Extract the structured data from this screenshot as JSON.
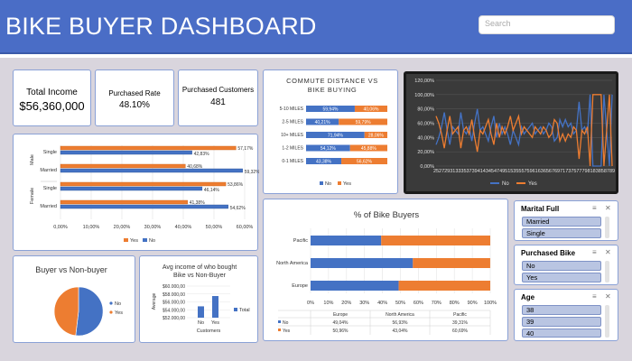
{
  "header": {
    "title": "BIKE BUYER DASHBOARD",
    "search_placeholder": "Search"
  },
  "kpis": {
    "income_label": "Total Income",
    "income_value": "$56,360,000",
    "rate_label": "Purchased Rate",
    "rate_value": "48.10%",
    "customers_label": "Purchased Customers",
    "customers_value": "481"
  },
  "colors": {
    "yes": "#ed7d31",
    "no": "#4472c4",
    "header": "#4a6dc6",
    "canvas": "#d9d5dd"
  },
  "gender_chart": {
    "tick_labels": [
      "0,00%",
      "10,00%",
      "20,00%",
      "30,00%",
      "40,00%",
      "50,00%",
      "60,00%"
    ],
    "legend": [
      "Yes",
      "No"
    ],
    "chart_data": {
      "type": "bar",
      "xlim": [
        0,
        0.6
      ],
      "groups": [
        "Male",
        "Female"
      ],
      "categories": [
        "Single",
        "Married",
        "Single",
        "Married"
      ],
      "series": [
        {
          "name": "Yes",
          "values": [
            0.5717,
            0.4068,
            0.5386,
            0.4138
          ]
        },
        {
          "name": "No",
          "values": [
            0.4283,
            0.5932,
            0.4614,
            0.5462
          ]
        }
      ],
      "label_text": {
        "yes": [
          "57,17%",
          "40,68%",
          "53,86%",
          "41,38%"
        ],
        "no": [
          "42,83%",
          "59,32%",
          "46,14%",
          "54,62%"
        ]
      }
    }
  },
  "commute_chart": {
    "title_line1": "COMMUTE DISTANCE VS",
    "title_line2": "BIKE BUYING",
    "legend": [
      "No",
      "Yes"
    ],
    "chart_data": {
      "type": "bar",
      "stacked": true,
      "categories": [
        "5-10 MILES",
        "2-5 MILES",
        "10+ MILES",
        "1-2 MILES",
        "0-1 MILES"
      ],
      "series": [
        {
          "name": "No",
          "values": [
            0.5994,
            0.4021,
            0.7194,
            0.5412,
            0.4338
          ]
        },
        {
          "name": "Yes",
          "values": [
            0.4006,
            0.5979,
            0.2806,
            0.4588,
            0.5662
          ]
        }
      ],
      "label_text": {
        "no": [
          "59,94%",
          "40,21%",
          "71,94%",
          "54,12%",
          "43,38%"
        ],
        "yes": [
          "40,06%",
          "59,79%",
          "28,06%",
          "45,88%",
          "56,62%"
        ]
      }
    }
  },
  "age_chart": {
    "y_ticks": [
      "120,00%",
      "100,00%",
      "80,00%",
      "60,00%",
      "40,00%",
      "20,00%",
      "0,00%"
    ],
    "legend": [
      "No",
      "Yes"
    ],
    "chart_data": {
      "type": "line",
      "ylim": [
        0,
        1.2
      ],
      "x": [
        25,
        26,
        27,
        28,
        29,
        30,
        31,
        32,
        33,
        34,
        35,
        36,
        37,
        38,
        39,
        40,
        41,
        42,
        43,
        44,
        45,
        46,
        47,
        48,
        49,
        50,
        51,
        52,
        53,
        54,
        55,
        56,
        57,
        58,
        59,
        60,
        61,
        62,
        63,
        64,
        65,
        66,
        67,
        68,
        69,
        70,
        71,
        72,
        73,
        74,
        75,
        76,
        77,
        78,
        79,
        80,
        81,
        82,
        83,
        84,
        85,
        86,
        87,
        88,
        89
      ],
      "x_labels": [
        "25",
        "27",
        "29",
        "31",
        "33",
        "35",
        "37",
        "39",
        "41",
        "43",
        "45",
        "47",
        "49",
        "51",
        "53",
        "55",
        "57",
        "59",
        "61",
        "63",
        "65",
        "67",
        "69",
        "71",
        "73",
        "75",
        "77",
        "79",
        "81",
        "83",
        "85",
        "87",
        "89"
      ],
      "series": [
        {
          "name": "No",
          "values": [
            0.3,
            0.4,
            0.55,
            0.75,
            0.5,
            0.3,
            0.55,
            0.5,
            0.45,
            0.75,
            0.5,
            0.45,
            0.55,
            0.35,
            0.6,
            0.8,
            0.5,
            0.55,
            0.45,
            0.35,
            0.55,
            0.7,
            0.4,
            0.6,
            0.45,
            0.55,
            0.45,
            0.3,
            0.5,
            0.4,
            0.3,
            0.55,
            0.45,
            0.5,
            0.55,
            0.6,
            0.45,
            0.5,
            0.55,
            0.45,
            0.5,
            0.6,
            0.55,
            0.35,
            0.4,
            0.65,
            0.55,
            0.65,
            0.55,
            0.6,
            0.45,
            0.5,
            0.9,
            0.5,
            0.55,
            0.45,
            1.0,
            0.0,
            0.0,
            0.0,
            0.0,
            1.0,
            0.5,
            0.0,
            1.0
          ]
        },
        {
          "name": "Yes",
          "values": [
            0.7,
            0.6,
            0.45,
            0.25,
            0.5,
            0.7,
            0.45,
            0.5,
            0.55,
            0.25,
            0.5,
            0.55,
            0.45,
            0.65,
            0.4,
            0.2,
            0.5,
            0.45,
            0.55,
            0.65,
            0.45,
            0.3,
            0.6,
            0.4,
            0.55,
            0.45,
            0.55,
            0.7,
            0.5,
            0.6,
            0.7,
            0.45,
            0.55,
            0.5,
            0.45,
            0.4,
            0.55,
            0.5,
            0.45,
            0.55,
            0.5,
            0.4,
            0.45,
            0.65,
            0.6,
            0.35,
            0.45,
            0.35,
            0.45,
            0.4,
            0.55,
            0.5,
            0.1,
            0.5,
            0.45,
            0.55,
            0.0,
            1.0,
            1.0,
            1.0,
            1.0,
            0.0,
            0.5,
            1.0,
            0.0
          ]
        }
      ]
    }
  },
  "region_chart": {
    "title": "% of Bike Buyers",
    "x_ticks": [
      "0%",
      "10%",
      "20%",
      "30%",
      "40%",
      "50%",
      "60%",
      "70%",
      "80%",
      "90%",
      "100%"
    ],
    "table_header": [
      "Europe",
      "North America",
      "Pacific"
    ],
    "table_rows": [
      {
        "name": "No",
        "cells": [
          "49,04%",
          "56,93%",
          "39,31%"
        ]
      },
      {
        "name": "Yes",
        "cells": [
          "50,96%",
          "43,04%",
          "60,69%"
        ]
      }
    ],
    "chart_data": {
      "type": "bar",
      "stacked": true,
      "categories": [
        "Pacific",
        "North America",
        "Europe"
      ],
      "series": [
        {
          "name": "No",
          "values": [
            0.3931,
            0.5693,
            0.4904
          ]
        },
        {
          "name": "Yes",
          "values": [
            0.6069,
            0.4304,
            0.5096
          ]
        }
      ]
    }
  },
  "buyer_pie": {
    "title": "Buyer vs Non-buyer",
    "legend": [
      "No",
      "Yes"
    ],
    "chart_data": {
      "type": "pie",
      "categories": [
        "No",
        "Yes"
      ],
      "values": [
        0.519,
        0.481
      ]
    }
  },
  "avg_income": {
    "title_line1": "Avg income of who bought",
    "title_line2": "Bike vs Non-Buyer",
    "y_ticks": [
      "$60.000,00",
      "$58.000,00",
      "$56.000,00",
      "$54.000,00",
      "$52.000,00"
    ],
    "ylabel": "Average",
    "xlabel": "Customers",
    "legend": "Total",
    "chart_data": {
      "type": "bar",
      "categories": [
        "No",
        "Yes"
      ],
      "values": [
        54874,
        57480
      ],
      "ylim": [
        52000,
        60000
      ]
    }
  },
  "slicers": {
    "marital": {
      "title": "Marital Full",
      "items": [
        "Married",
        "Single"
      ]
    },
    "purchased": {
      "title": "Purchased Bike",
      "items": [
        "No",
        "Yes"
      ]
    },
    "age": {
      "title": "Age",
      "items": [
        "38",
        "39",
        "40"
      ]
    }
  }
}
